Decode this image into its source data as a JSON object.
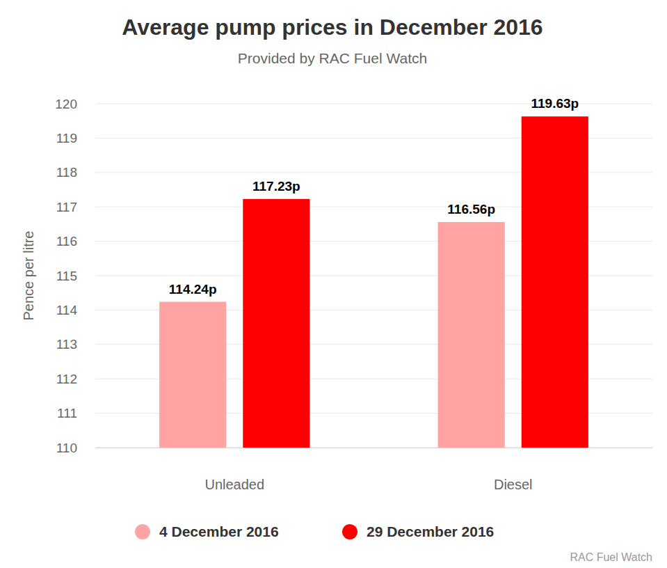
{
  "chart_data": {
    "type": "bar",
    "title": "Average pump prices in December 2016",
    "subtitle": "Provided by RAC Fuel Watch",
    "y_label": "Pence per litre",
    "source": "RAC Fuel Watch",
    "categories": [
      "Unleaded",
      "Diesel"
    ],
    "series": [
      {
        "name": "4 December 2016",
        "color": "#ffa3a3",
        "values": [
          114.24,
          116.56
        ],
        "value_labels": [
          "114.24p",
          "116.56p"
        ]
      },
      {
        "name": "29 December 2016",
        "color": "#ff0000",
        "values": [
          117.23,
          119.63
        ],
        "value_labels": [
          "117.23p",
          "119.63p"
        ]
      }
    ],
    "ylim": [
      110,
      120
    ],
    "yticks": [
      110,
      111,
      112,
      113,
      114,
      115,
      116,
      117,
      118,
      119,
      120
    ],
    "grid": true,
    "data_labels": true,
    "legend": "bottom"
  }
}
